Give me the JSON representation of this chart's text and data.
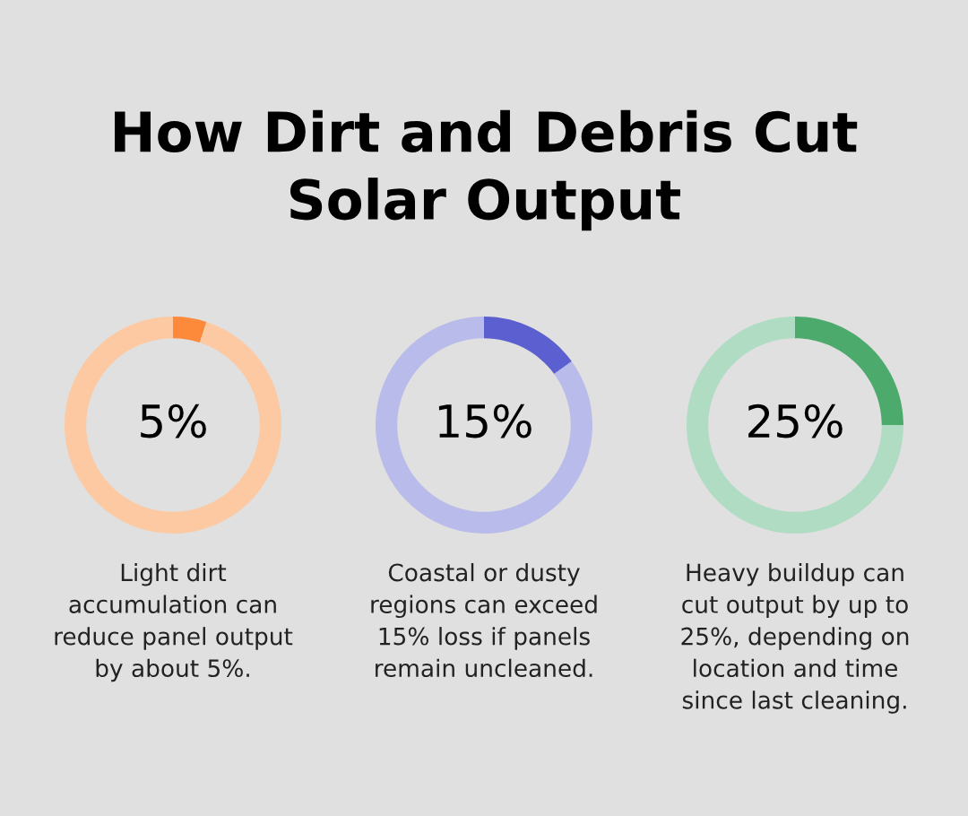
{
  "chart_data": [
    {
      "type": "donut",
      "title": "How Dirt and Debris Cut\nSolar Output",
      "categories": [
        null,
        null
      ],
      "values": [
        5,
        95
      ],
      "colors": [
        "#fd8a3a",
        "#fdc9a2"
      ],
      "value_labels": [
        "5%",
        null
      ],
      "annotations": [
        "Light dirt\naccumulation can\nreduce panel output\nby about 5%."
      ]
    },
    {
      "type": "donut",
      "categories": [
        null,
        null
      ],
      "values": [
        15,
        85
      ],
      "colors": [
        "#5c5fcf",
        "#b9bbea"
      ],
      "value_labels": [
        "15%",
        null
      ],
      "annotations": [
        "Coastal or dusty\nregions can exceed\n15% loss if panels\nremain uncleaned."
      ]
    },
    {
      "type": "donut",
      "categories": [
        null,
        null
      ],
      "values": [
        25,
        75
      ],
      "colors": [
        "#4caa6c",
        "#b0dcc4"
      ],
      "value_labels": [
        "25%",
        null
      ],
      "annotations": [
        "Heavy buildup can\ncut output by up to\n25%, depending on\nlocation and time\nsince last cleaning."
      ]
    }
  ]
}
